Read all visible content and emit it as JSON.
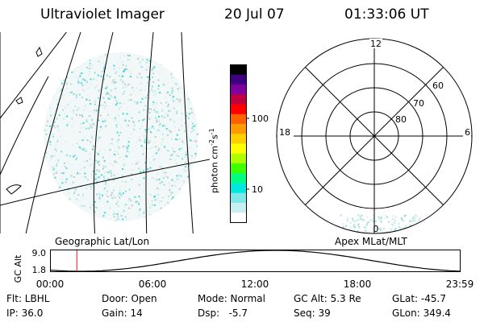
{
  "header": {
    "instrument": "Ultraviolet Imager",
    "date": "20 Jul 07",
    "time": "01:33:06 UT"
  },
  "left_panel": {
    "caption": "Geographic Lat/Lon"
  },
  "colorbar": {
    "units_main": "photon cm",
    "units_exp1": "-2",
    "units_mid": "s",
    "units_exp2": "-1",
    "ticks": [
      "100",
      "10"
    ],
    "colors": [
      "#000000",
      "#3c0080",
      "#8000a0",
      "#c00040",
      "#ff0000",
      "#ff6000",
      "#ff9a00",
      "#ffd000",
      "#ffff00",
      "#b0ff00",
      "#40ff00",
      "#00ff80",
      "#00e8e0",
      "#80e8e8",
      "#c8f0f0",
      "#ffffff"
    ]
  },
  "polar_panel": {
    "caption": "Apex MLat/MLT",
    "mlt_labels": {
      "top": "12",
      "left": "18",
      "right": "6",
      "bottom": "0"
    },
    "lat_labels": [
      "60",
      "70",
      "80"
    ]
  },
  "altitude_plot": {
    "ylabel": "GC Alt",
    "ytick_top": "9.0",
    "ytick_bottom": "1.8",
    "xticks": [
      "00:00",
      "06:00",
      "12:00",
      "18:00",
      "23:59"
    ],
    "current_time_hours": 1.55
  },
  "status": {
    "flt": "Flt: LBHL",
    "ip": "IP: 36.0",
    "door": "Door: Open",
    "gain": "Gain: 14",
    "mode": "Mode: Normal",
    "dsp": "Dsp:   -5.7",
    "gc_alt": "GC Alt: 5.3 Re",
    "seq": "Seq: 39",
    "glat": "GLat: -45.7",
    "glon": "GLon: 349.4"
  }
}
